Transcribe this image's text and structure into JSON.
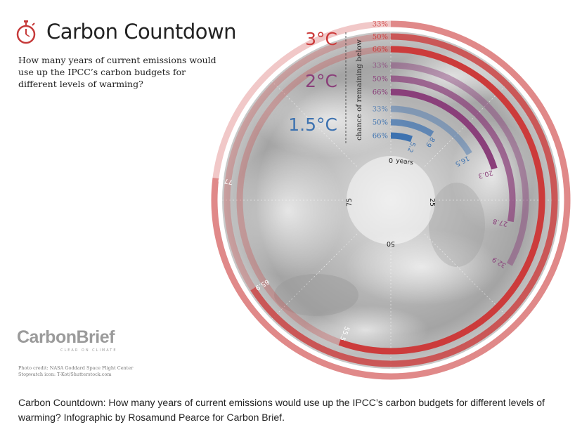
{
  "header": {
    "title": "Carbon Countdown",
    "subtitle": "How many years of current emissions would use up the IPCC’s carbon budgets for different levels of warming?",
    "icon": "stopwatch-icon"
  },
  "brand": {
    "name": "CarbonBrief",
    "tagline": "CLEAR ON CLIMATE",
    "credits": [
      "Photo credit: NASA Goddard Space Flight Center",
      "Stopwatch icon: T-Kot/Shutterstock.com"
    ]
  },
  "caption": "Carbon Countdown: How many years of current emissions would use up the IPCC’s carbon budgets for different levels of warming? Infographic by Rosamund Pearce for Carbon Brief.",
  "chart_data": {
    "type": "radial-bar",
    "unit": "years",
    "axis": {
      "min": 0,
      "max": 100,
      "ticks": [
        0,
        25,
        50,
        75
      ],
      "unit_label": "years"
    },
    "chance_label": "chance of remaining below",
    "groups": [
      {
        "name": "1.5°C",
        "color": "#3d72b0",
        "bars": [
          {
            "chance": "66%",
            "value": 5.2,
            "label": "5.2"
          },
          {
            "chance": "50%",
            "value": 8.9,
            "label": "8.9"
          },
          {
            "chance": "33%",
            "value": 16.5,
            "label": "16.5"
          }
        ]
      },
      {
        "name": "2°C",
        "color": "#8a3f7a",
        "bars": [
          {
            "chance": "66%",
            "value": 20.3,
            "label": "20.3"
          },
          {
            "chance": "50%",
            "value": 27.8,
            "label": "27.8"
          },
          {
            "chance": "33%",
            "value": 32.9,
            "label": "32.9"
          }
        ]
      },
      {
        "name": "3°C",
        "color": "#cc3b3b",
        "bars": [
          {
            "chance": "66%",
            "value": 55.5,
            "label": "55.5"
          },
          {
            "chance": "50%",
            "value": 65.9,
            "label": "65.9"
          },
          {
            "chance": "33%",
            "value": 77.0,
            "label": "77.0"
          }
        ]
      }
    ]
  }
}
